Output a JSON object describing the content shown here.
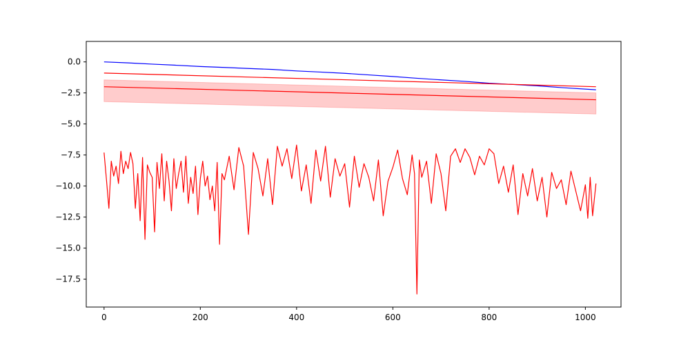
{
  "chart_data": {
    "type": "line",
    "title": "",
    "xlabel": "",
    "ylabel": "",
    "xlim": [
      -37,
      1074
    ],
    "ylim": [
      -19.75,
      1.65
    ],
    "grid": false,
    "x_ticks": [
      0,
      200,
      400,
      600,
      800,
      1000
    ],
    "y_ticks": [
      0.0,
      -2.5,
      -5.0,
      -7.5,
      -10.0,
      -12.5,
      -15.0,
      -17.5
    ],
    "x_tick_labels": [
      "0",
      "200",
      "400",
      "600",
      "800",
      "1000"
    ],
    "y_tick_labels": [
      "0.0",
      "−2.5",
      "−5.0",
      "−7.5",
      "−10.0",
      "−12.5",
      "−15.0",
      "−17.5"
    ],
    "series": [
      {
        "color": "#0000ff",
        "kind": "line",
        "x": [
          0,
          50,
          100,
          150,
          200,
          250,
          300,
          350,
          400,
          450,
          500,
          550,
          600,
          650,
          700,
          750,
          800,
          850,
          900,
          950,
          1022
        ],
        "y": [
          0.0,
          -0.08,
          -0.18,
          -0.27,
          -0.37,
          -0.45,
          -0.53,
          -0.61,
          -0.73,
          -0.82,
          -0.92,
          -1.05,
          -1.18,
          -1.32,
          -1.45,
          -1.57,
          -1.72,
          -1.82,
          -1.93,
          -2.07,
          -2.25
        ]
      },
      {
        "color": "#ff0000",
        "kind": "line",
        "x": [
          0,
          1022
        ],
        "y": [
          -0.9,
          -2.0
        ]
      },
      {
        "color": "#ff0000",
        "kind": "line",
        "x": [
          0,
          1022
        ],
        "y": [
          -2.0,
          -3.05
        ]
      },
      {
        "color": "#ff0000",
        "kind": "band",
        "x": [
          0,
          1022
        ],
        "y_upper": [
          -1.45,
          -2.5
        ],
        "y_lower": [
          -3.2,
          -4.2
        ]
      },
      {
        "color": "#ff0000",
        "kind": "line",
        "x": [
          0,
          5,
          10,
          15,
          20,
          25,
          30,
          35,
          40,
          45,
          50,
          55,
          60,
          65,
          70,
          75,
          80,
          85,
          90,
          95,
          100,
          105,
          110,
          115,
          120,
          125,
          130,
          135,
          140,
          145,
          150,
          155,
          160,
          165,
          170,
          175,
          180,
          185,
          190,
          195,
          200,
          205,
          210,
          215,
          220,
          225,
          230,
          235,
          240,
          245,
          250,
          260,
          270,
          280,
          290,
          300,
          310,
          320,
          330,
          340,
          350,
          360,
          370,
          380,
          390,
          400,
          410,
          420,
          430,
          440,
          450,
          460,
          470,
          480,
          490,
          500,
          510,
          520,
          530,
          540,
          550,
          560,
          570,
          580,
          590,
          600,
          610,
          620,
          630,
          640,
          645,
          650,
          655,
          660,
          670,
          680,
          690,
          700,
          710,
          720,
          730,
          740,
          750,
          760,
          770,
          780,
          790,
          800,
          810,
          820,
          830,
          840,
          850,
          860,
          870,
          880,
          890,
          900,
          910,
          920,
          930,
          940,
          950,
          960,
          970,
          980,
          990,
          1000,
          1005,
          1010,
          1015,
          1022
        ],
        "y": [
          -7.3,
          -9.5,
          -11.8,
          -8.0,
          -9.2,
          -8.4,
          -9.8,
          -7.2,
          -9.0,
          -8.0,
          -8.6,
          -7.3,
          -8.2,
          -11.8,
          -9.0,
          -12.8,
          -7.7,
          -14.3,
          -8.3,
          -8.9,
          -9.3,
          -13.7,
          -8.1,
          -10.2,
          -7.4,
          -11.2,
          -8.0,
          -9.6,
          -12.0,
          -7.8,
          -10.2,
          -9.0,
          -8.0,
          -10.5,
          -7.6,
          -11.4,
          -9.3,
          -10.6,
          -8.4,
          -12.3,
          -9.4,
          -8.0,
          -10.0,
          -9.2,
          -11.1,
          -10.0,
          -12.0,
          -8.1,
          -14.7,
          -9.0,
          -9.5,
          -7.6,
          -10.3,
          -6.9,
          -8.4,
          -13.9,
          -7.3,
          -8.6,
          -10.8,
          -7.8,
          -11.5,
          -6.8,
          -8.4,
          -7.0,
          -9.4,
          -6.7,
          -10.4,
          -8.3,
          -11.4,
          -7.1,
          -9.6,
          -6.8,
          -10.9,
          -7.8,
          -9.2,
          -8.2,
          -11.7,
          -7.6,
          -10.1,
          -8.2,
          -9.3,
          -11.2,
          -7.9,
          -12.4,
          -9.6,
          -8.5,
          -7.1,
          -9.4,
          -10.7,
          -7.5,
          -9.0,
          -18.7,
          -7.9,
          -9.3,
          -8.0,
          -11.4,
          -7.4,
          -9.0,
          -12.0,
          -7.6,
          -7.0,
          -8.1,
          -7.0,
          -7.7,
          -9.1,
          -7.6,
          -8.3,
          -7.0,
          -7.4,
          -9.8,
          -8.4,
          -10.5,
          -8.3,
          -12.3,
          -9.0,
          -10.8,
          -8.6,
          -11.2,
          -9.3,
          -12.5,
          -8.9,
          -10.2,
          -9.5,
          -11.5,
          -8.8,
          -10.4,
          -12.0,
          -9.9,
          -12.6,
          -9.3,
          -12.4,
          -9.8
        ]
      }
    ]
  }
}
